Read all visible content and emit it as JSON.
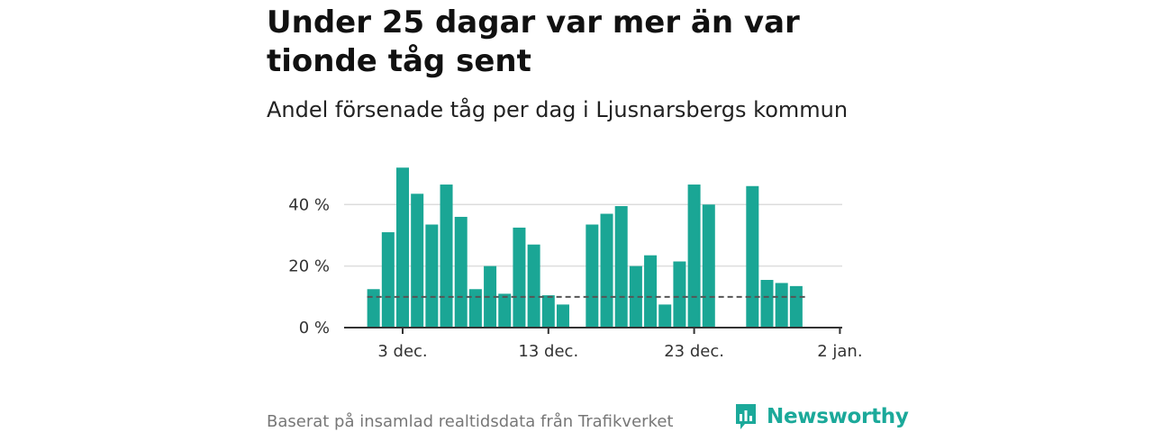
{
  "header": {
    "title": "Under 25 dagar var mer än var tionde tåg sent",
    "subtitle": "Andel försenade tåg per dag i Ljusnarsbergs kommun"
  },
  "footer": {
    "source": "Baserat på insamlad realtidsdata från Trafikverket",
    "brand": "Newsworthy"
  },
  "colors": {
    "bar": "#1aa695",
    "brand": "#1ba99a",
    "reference_line": "#555555",
    "grid": "#dddddd"
  },
  "chart_data": {
    "type": "bar",
    "title": "Under 25 dagar var mer än var tionde tåg sent",
    "subtitle": "Andel försenade tåg per dag i Ljusnarsbergs kommun",
    "xlabel": "",
    "ylabel": "",
    "x_ticks": [
      "3 dec.",
      "13 dec.",
      "23 dec.",
      "2 jan."
    ],
    "y_ticks": [
      "0 %",
      "20 %",
      "40 %"
    ],
    "ylim": [
      0,
      55
    ],
    "grid": true,
    "reference_line": {
      "value": 10,
      "style": "dashed"
    },
    "series": [
      {
        "values": [
          {
            "date": "2022-12-01",
            "value": 12.5
          },
          {
            "date": "2022-12-02",
            "value": 31
          },
          {
            "date": "2022-12-03",
            "value": 52
          },
          {
            "date": "2022-12-04",
            "value": 43.5
          },
          {
            "date": "2022-12-05",
            "value": 33.5
          },
          {
            "date": "2022-12-06",
            "value": 46.5
          },
          {
            "date": "2022-12-07",
            "value": 36
          },
          {
            "date": "2022-12-08",
            "value": 12.5
          },
          {
            "date": "2022-12-09",
            "value": 20
          },
          {
            "date": "2022-12-10",
            "value": 11
          },
          {
            "date": "2022-12-11",
            "value": 32.5
          },
          {
            "date": "2022-12-12",
            "value": 27
          },
          {
            "date": "2022-12-13",
            "value": 10.5
          },
          {
            "date": "2022-12-14",
            "value": 7.5
          },
          {
            "date": "2022-12-16",
            "value": 33.5
          },
          {
            "date": "2022-12-17",
            "value": 37
          },
          {
            "date": "2022-12-18",
            "value": 39.5
          },
          {
            "date": "2022-12-19",
            "value": 20
          },
          {
            "date": "2022-12-20",
            "value": 23.5
          },
          {
            "date": "2022-12-21",
            "value": 7.5
          },
          {
            "date": "2022-12-22",
            "value": 21.5
          },
          {
            "date": "2022-12-23",
            "value": 46.5
          },
          {
            "date": "2022-12-24",
            "value": 40
          },
          {
            "date": "2022-12-27",
            "value": 46
          },
          {
            "date": "2022-12-28",
            "value": 15.5
          },
          {
            "date": "2022-12-29",
            "value": 14.5
          },
          {
            "date": "2022-12-30",
            "value": 13.5
          }
        ]
      }
    ]
  }
}
